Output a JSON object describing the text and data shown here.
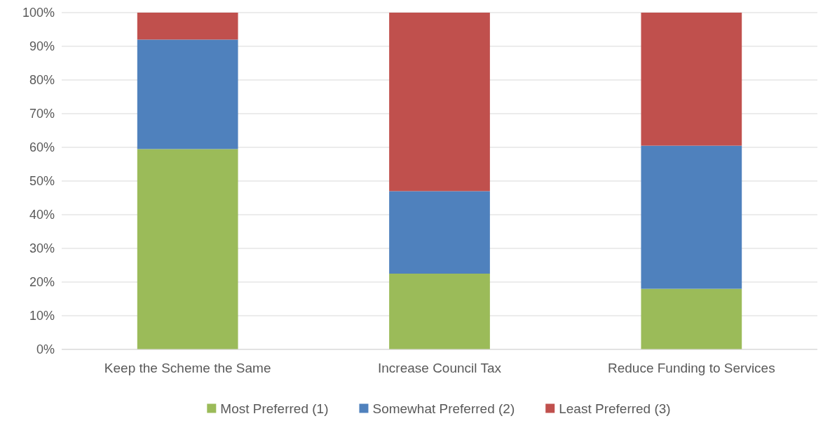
{
  "chart_data": {
    "type": "bar",
    "stacked": true,
    "categories": [
      "Keep the Scheme the Same",
      "Increase Council Tax",
      "Reduce Funding to Services"
    ],
    "series": [
      {
        "name": "Most Preferred (1)",
        "color": "#9bbb59",
        "values": [
          59.5,
          22.5,
          18
        ]
      },
      {
        "name": "Somewhat Preferred (2)",
        "color": "#4f81bd",
        "values": [
          32.5,
          24.5,
          42.5
        ]
      },
      {
        "name": "Least Preferred (3)",
        "color": "#c0504d",
        "values": [
          8,
          53,
          39.5
        ]
      }
    ],
    "ylim": [
      0,
      100
    ],
    "yticks": [
      {
        "value": 0,
        "label": "0%"
      },
      {
        "value": 10,
        "label": "10%"
      },
      {
        "value": 20,
        "label": "20%"
      },
      {
        "value": 30,
        "label": "30%"
      },
      {
        "value": 40,
        "label": "40%"
      },
      {
        "value": 50,
        "label": "50%"
      },
      {
        "value": 60,
        "label": "60%"
      },
      {
        "value": 70,
        "label": "70%"
      },
      {
        "value": 80,
        "label": "80%"
      },
      {
        "value": 90,
        "label": "90%"
      },
      {
        "value": 100,
        "label": "100%"
      }
    ],
    "grid": "y",
    "legend": "bottom"
  }
}
